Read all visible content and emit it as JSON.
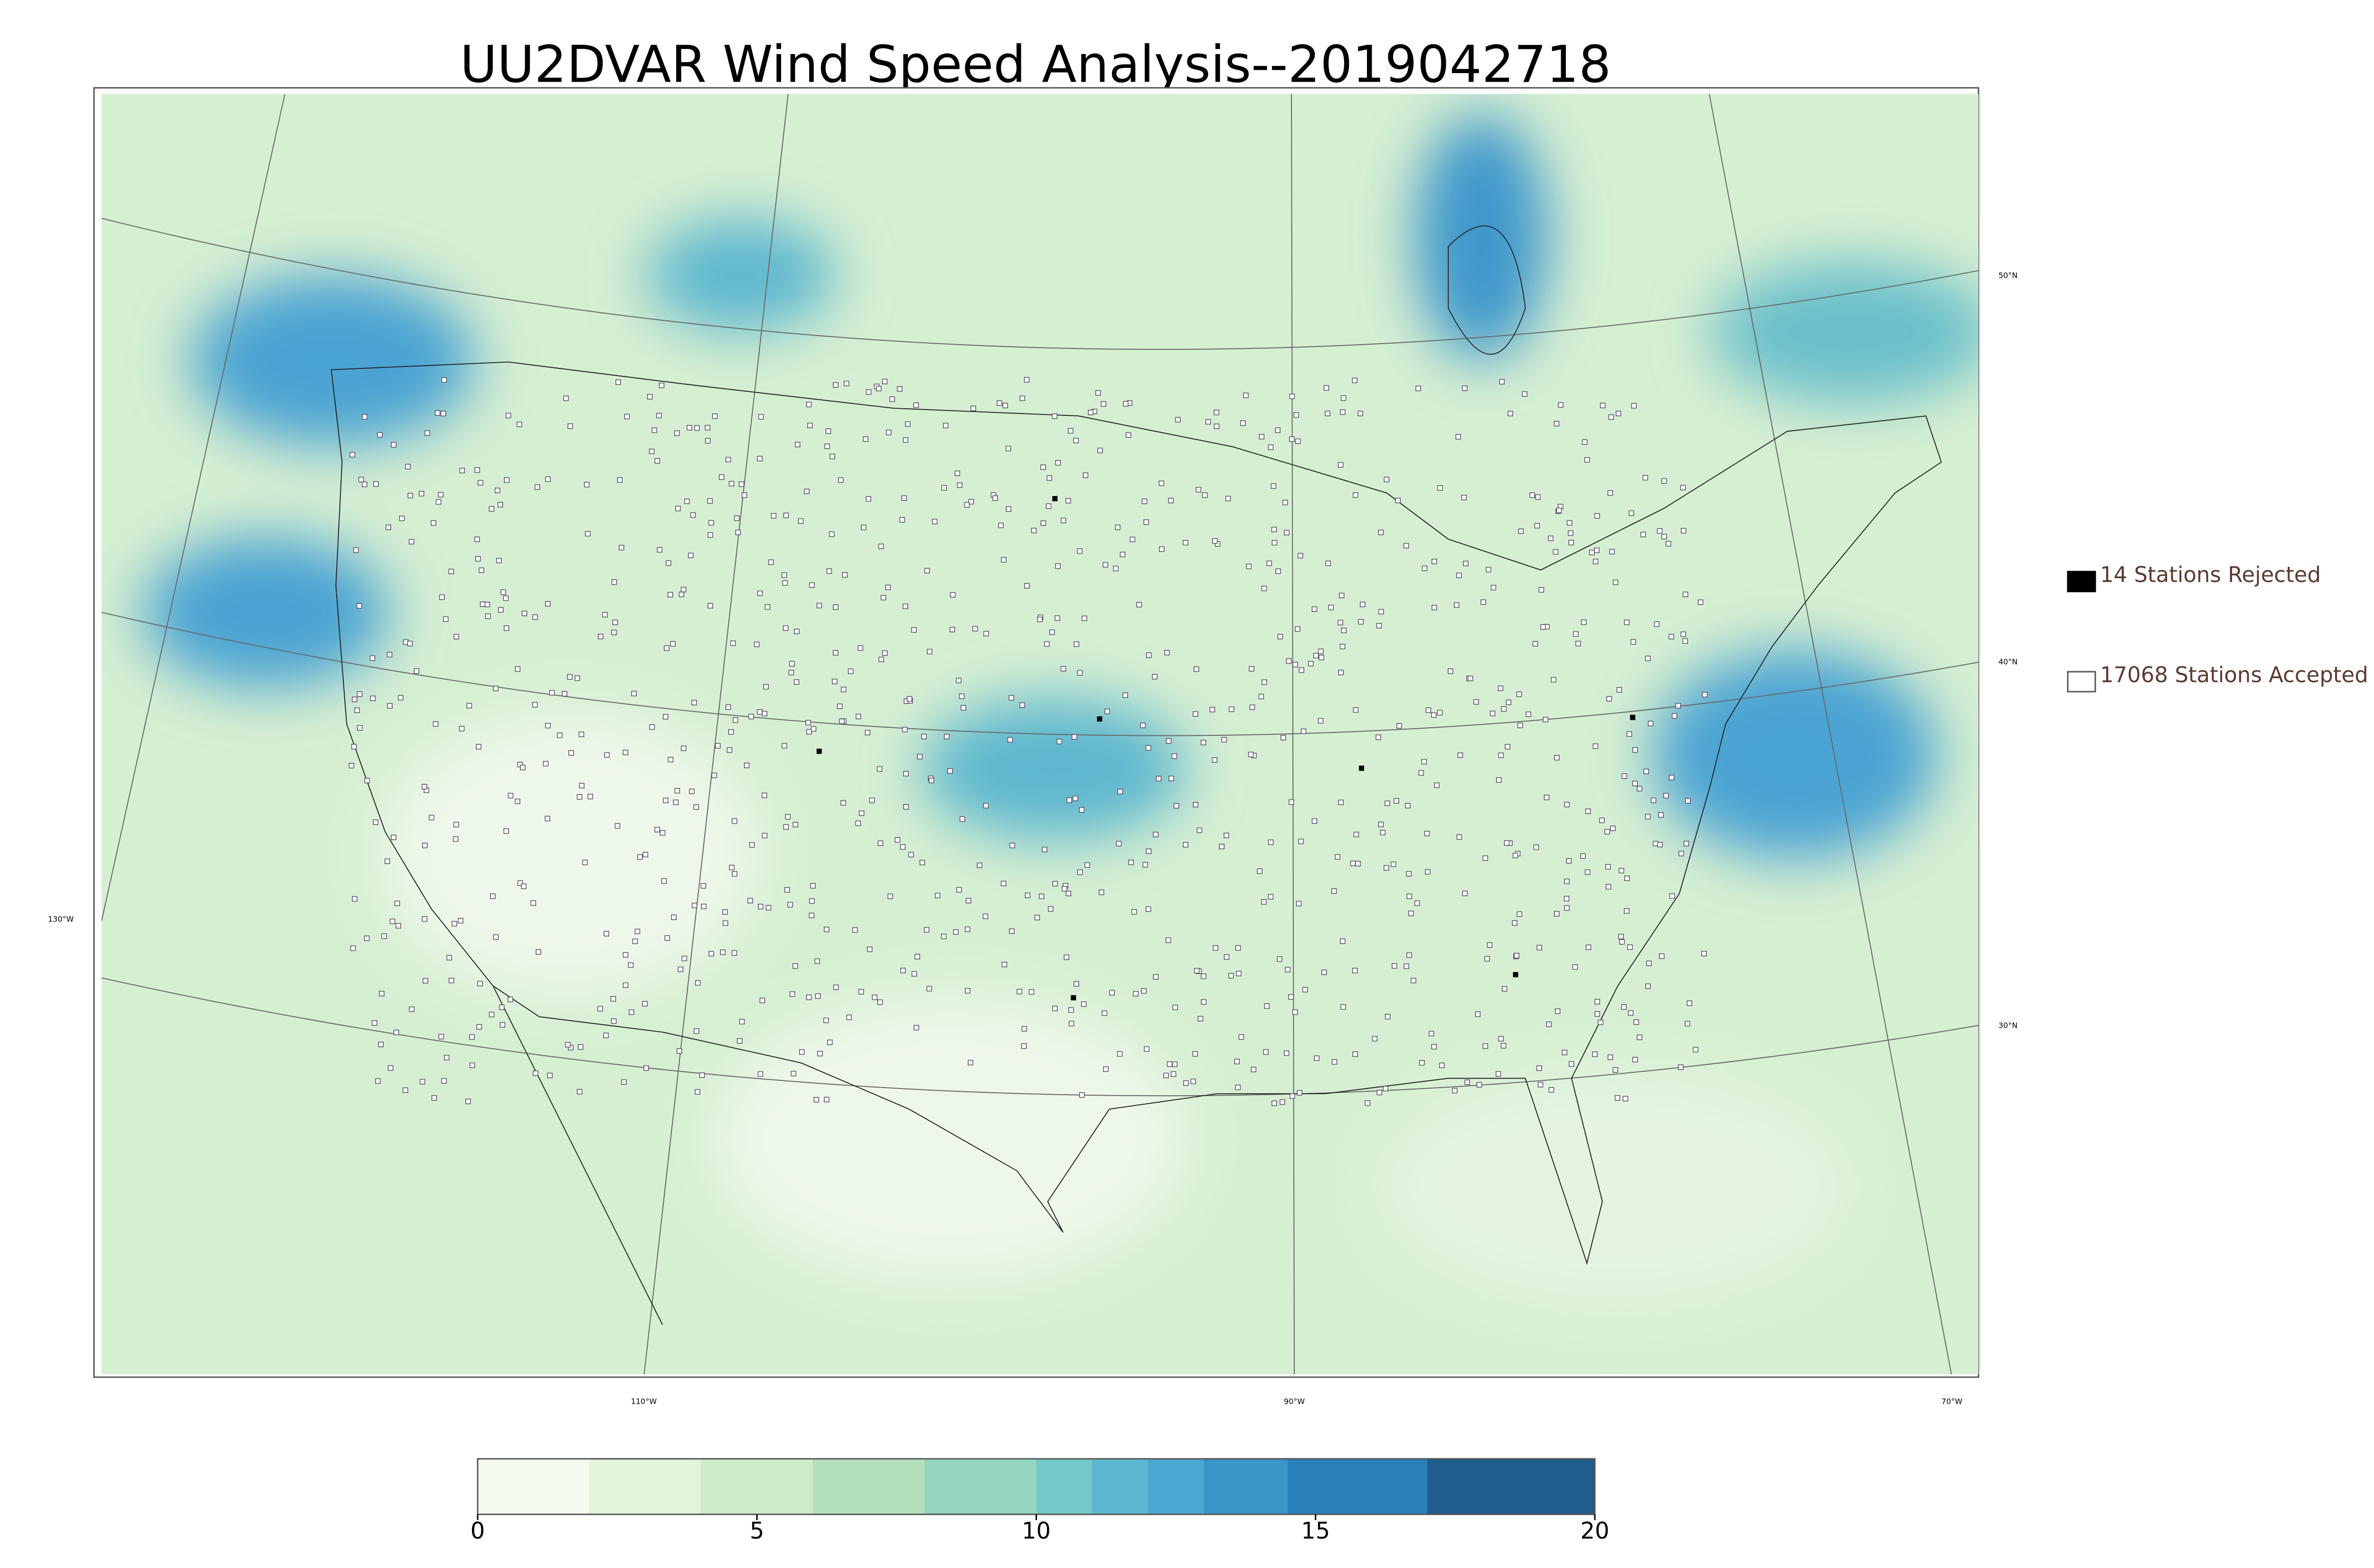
{
  "title": "UU2DVAR Wind Speed Analysis--2019042718",
  "map": {
    "latitude_labels": [
      "50°N",
      "40°N",
      "30°N"
    ],
    "longitude_labels": [
      "130°W",
      "110°W",
      "90°W",
      "70°W"
    ]
  },
  "legend": [
    {
      "label": "14 Stations Rejected",
      "marker": "filled",
      "color": "#000000"
    },
    {
      "label": "17068 Stations Accepted",
      "marker": "open",
      "color": "#ffffff"
    }
  ],
  "colorbar": {
    "lim": [
      0,
      20
    ],
    "ticks": [
      0,
      5,
      10,
      15,
      20
    ],
    "levels": [
      0,
      2,
      4,
      6,
      8,
      10,
      11,
      12,
      13,
      14.5,
      17,
      20
    ],
    "colors": [
      "#f4fbee",
      "#e3f4dd",
      "#cfecc9",
      "#b4e1bc",
      "#94d5bf",
      "#75c8c8",
      "#5bb8d0",
      "#4aa9d2",
      "#3a96c8",
      "#2a80b9",
      "#1f5e8c"
    ]
  }
}
